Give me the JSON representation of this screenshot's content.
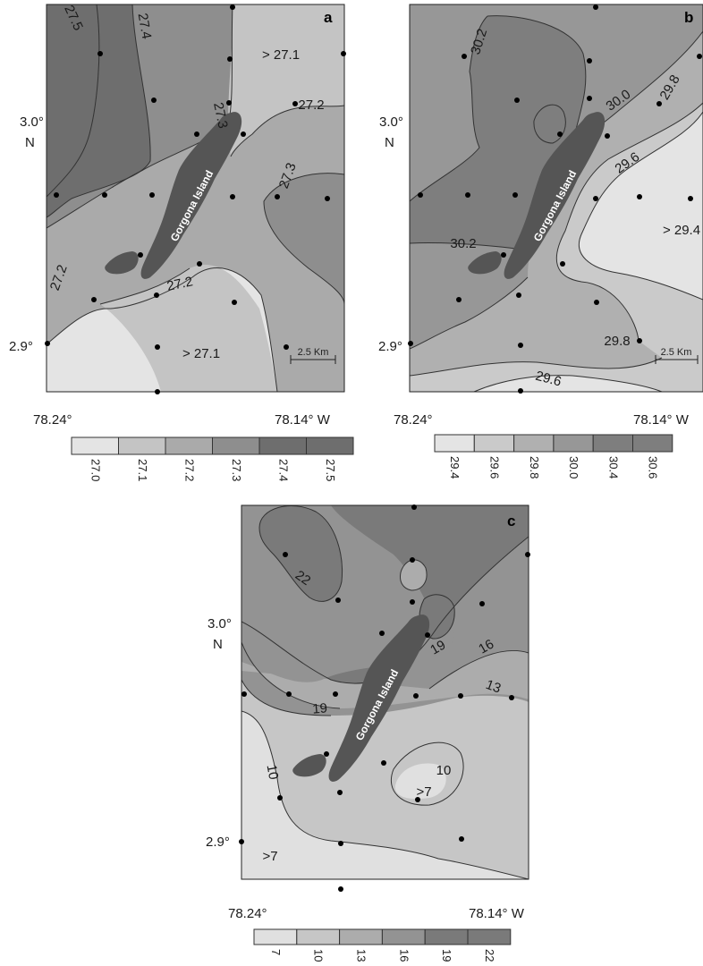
{
  "panels": [
    {
      "letter": "a",
      "lat_labels": [
        {
          "value": "3.0°",
          "hemisphere": "N"
        },
        {
          "value": "2.9°"
        }
      ],
      "lon_labels": [
        "78.24°",
        "78.14° W"
      ],
      "island_label": "Gorgona Island",
      "scale_bar": "2.5 Km",
      "contour_labels": [
        "27.5",
        "27.4",
        "27.3",
        "27.3",
        "27.2",
        "27.2",
        "27.2",
        "> 27.1",
        "> 27.1"
      ],
      "legend": [
        "27.0",
        "27.1",
        "27.2",
        "27.3",
        "27.4",
        "27.5"
      ],
      "fill_colors": [
        "#e4e4e4",
        "#c4c4c4",
        "#aaaaaa",
        "#8e8e8e",
        "#6e6e6e"
      ]
    },
    {
      "letter": "b",
      "lat_labels": [
        {
          "value": "3.0°",
          "hemisphere": "N"
        },
        {
          "value": "2.9°"
        }
      ],
      "lon_labels": [
        "78.24°",
        "78.14° W"
      ],
      "island_label": "Gorgona Island",
      "scale_bar": "2.5 Km",
      "contour_labels": [
        "30.2",
        "30.0",
        "29.8",
        "29.6",
        "30.2",
        "29.8",
        "29.6",
        "> 29.4"
      ],
      "legend": [
        "29.4",
        "29.6",
        "29.8",
        "30.0",
        "30.4",
        "30.6"
      ],
      "fill_colors": [
        "#e4e4e4",
        "#cacaca",
        "#b0b0b0",
        "#979797",
        "#7e7e7e"
      ]
    },
    {
      "letter": "c",
      "lat_labels": [
        {
          "value": "3.0°",
          "hemisphere": "N"
        },
        {
          "value": "2.9°"
        }
      ],
      "lon_labels": [
        "78.24°",
        "78.14° W"
      ],
      "island_label": "Gorgona Island",
      "contour_labels": [
        "22",
        "19",
        "16",
        "19",
        "13",
        "10",
        "10",
        ">7",
        ">7"
      ],
      "legend": [
        "7",
        "10",
        "13",
        "16",
        "19",
        "22"
      ],
      "fill_colors": [
        "#e0e0e0",
        "#c6c6c6",
        "#acacac",
        "#939393",
        "#7a7a7a"
      ]
    }
  ]
}
